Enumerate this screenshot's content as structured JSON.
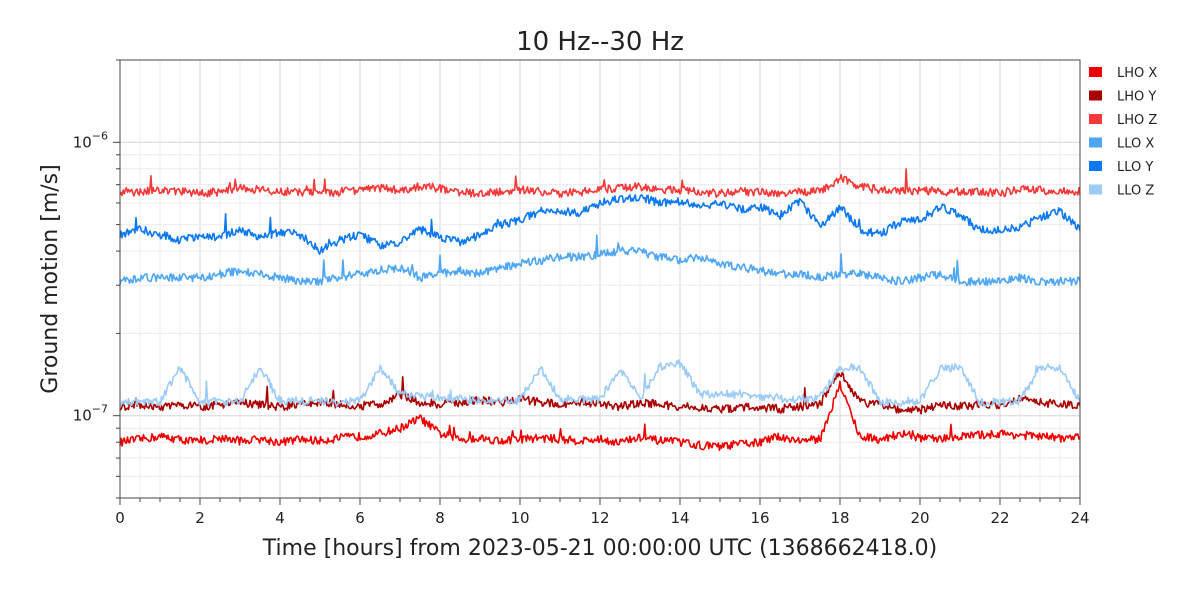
{
  "chart_data": {
    "type": "line",
    "title": "10 Hz--30 Hz",
    "xlabel": "Time [hours] from 2023-05-21 00:00:00 UTC (1368662418.0)",
    "ylabel": "Ground motion [m/s]",
    "xlim": [
      0,
      24
    ],
    "ylim": [
      5e-08,
      2e-06
    ],
    "yscale": "log",
    "x_ticks": [
      0,
      2,
      4,
      6,
      8,
      10,
      12,
      14,
      16,
      18,
      20,
      22,
      24
    ],
    "x_tick_labels": [
      "0",
      "2",
      "4",
      "6",
      "8",
      "10",
      "12",
      "14",
      "16",
      "18",
      "20",
      "22",
      "24"
    ],
    "y_tick_labels": [
      "10^-7",
      "10^-6"
    ],
    "y_ticks": [
      1e-07,
      1e-06
    ],
    "grid": true,
    "legend_position": "outside-right",
    "x": [
      0,
      0.5,
      1,
      1.5,
      2,
      2.5,
      3,
      3.5,
      4,
      4.5,
      5,
      5.5,
      6,
      6.5,
      7,
      7.5,
      8,
      8.5,
      9,
      9.5,
      10,
      10.5,
      11,
      11.5,
      12,
      12.5,
      13,
      13.5,
      14,
      14.5,
      15,
      15.5,
      16,
      16.5,
      17,
      17.5,
      18,
      18.5,
      19,
      19.5,
      20,
      20.5,
      21,
      21.5,
      22,
      22.5,
      23,
      23.5,
      24
    ],
    "series": [
      {
        "name": "LHO X",
        "color": "#ee0000",
        "values": [
          8e-08,
          8.2e-08,
          8.4e-08,
          8.2e-08,
          8e-08,
          8.3e-08,
          8.1e-08,
          8.2e-08,
          8e-08,
          8.2e-08,
          8.1e-08,
          8.3e-08,
          8.4e-08,
          8.6e-08,
          9e-08,
          9.8e-08,
          8.6e-08,
          8.2e-08,
          8.3e-08,
          8.1e-08,
          8.2e-08,
          8.3e-08,
          8.2e-08,
          8.1e-08,
          8.2e-08,
          8e-08,
          8.3e-08,
          8.1e-08,
          8e-08,
          7.8e-08,
          7.7e-08,
          7.9e-08,
          8e-08,
          8.4e-08,
          8.1e-08,
          8.2e-08,
          1.3e-07,
          8.4e-08,
          8.2e-08,
          8.6e-08,
          8.3e-08,
          8.2e-08,
          8.4e-08,
          8.5e-08,
          8.6e-08,
          8.5e-08,
          8.4e-08,
          8.3e-08,
          8.3e-08
        ]
      },
      {
        "name": "LHO Y",
        "color": "#a80000",
        "values": [
          1.08e-07,
          1.1e-07,
          1.07e-07,
          1.1e-07,
          1.08e-07,
          1.1e-07,
          1.12e-07,
          1.1e-07,
          1.08e-07,
          1.1e-07,
          1.11e-07,
          1.1e-07,
          1.09e-07,
          1.1e-07,
          1.2e-07,
          1.12e-07,
          1.1e-07,
          1.12e-07,
          1.14e-07,
          1.12e-07,
          1.15e-07,
          1.12e-07,
          1.1e-07,
          1.12e-07,
          1.1e-07,
          1.08e-07,
          1.12e-07,
          1.1e-07,
          1.08e-07,
          1.07e-07,
          1.05e-07,
          1.08e-07,
          1.07e-07,
          1.06e-07,
          1.08e-07,
          1.1e-07,
          1.45e-07,
          1.12e-07,
          1.1e-07,
          1.05e-07,
          1.05e-07,
          1.1e-07,
          1.08e-07,
          1.1e-07,
          1.1e-07,
          1.15e-07,
          1.12e-07,
          1.1e-07,
          1.1e-07
        ]
      },
      {
        "name": "LHO Z",
        "color": "#f53838",
        "values": [
          6.6e-07,
          6.6e-07,
          6.7e-07,
          6.6e-07,
          6.5e-07,
          6.6e-07,
          6.8e-07,
          6.7e-07,
          6.6e-07,
          6.6e-07,
          6.5e-07,
          6.6e-07,
          6.7e-07,
          6.8e-07,
          6.7e-07,
          6.9e-07,
          6.8e-07,
          6.6e-07,
          6.5e-07,
          6.6e-07,
          6.7e-07,
          6.6e-07,
          6.5e-07,
          6.6e-07,
          6.7e-07,
          6.8e-07,
          6.9e-07,
          6.7e-07,
          6.7e-07,
          6.6e-07,
          6.5e-07,
          6.6e-07,
          6.6e-07,
          6.5e-07,
          6.6e-07,
          6.6e-07,
          7.4e-07,
          6.9e-07,
          6.7e-07,
          6.6e-07,
          6.7e-07,
          6.6e-07,
          6.6e-07,
          6.6e-07,
          6.5e-07,
          6.8e-07,
          6.7e-07,
          6.6e-07,
          6.6e-07
        ]
      },
      {
        "name": "LLO X",
        "color": "#4ea6f5",
        "values": [
          3.1e-07,
          3.2e-07,
          3.2e-07,
          3.2e-07,
          3.2e-07,
          3.3e-07,
          3.4e-07,
          3.3e-07,
          3.2e-07,
          3.1e-07,
          3.1e-07,
          3.2e-07,
          3.3e-07,
          3.4e-07,
          3.5e-07,
          3.2e-07,
          3.3e-07,
          3.4e-07,
          3.3e-07,
          3.5e-07,
          3.6e-07,
          3.7e-07,
          3.8e-07,
          3.8e-07,
          3.9e-07,
          4e-07,
          4e-07,
          3.8e-07,
          3.7e-07,
          3.8e-07,
          3.6e-07,
          3.5e-07,
          3.4e-07,
          3.3e-07,
          3.3e-07,
          3.2e-07,
          3.3e-07,
          3.3e-07,
          3.2e-07,
          3.1e-07,
          3.2e-07,
          3.3e-07,
          3.1e-07,
          3.1e-07,
          3.1e-07,
          3.2e-07,
          3.1e-07,
          3.1e-07,
          3.1e-07
        ]
      },
      {
        "name": "LLO Y",
        "color": "#0a78f0",
        "values": [
          4.6e-07,
          4.8e-07,
          4.6e-07,
          4.4e-07,
          4.5e-07,
          4.5e-07,
          4.8e-07,
          4.5e-07,
          4.7e-07,
          4.6e-07,
          4e-07,
          4.4e-07,
          4.6e-07,
          4.2e-07,
          4.3e-07,
          4.8e-07,
          4.5e-07,
          4.3e-07,
          4.6e-07,
          5e-07,
          5.2e-07,
          5.6e-07,
          5.6e-07,
          5.5e-07,
          6e-07,
          6.2e-07,
          6.3e-07,
          6e-07,
          6.1e-07,
          5.8e-07,
          6e-07,
          5.7e-07,
          5.8e-07,
          5.4e-07,
          6.1e-07,
          4.9e-07,
          5.8e-07,
          4.8e-07,
          4.6e-07,
          5.1e-07,
          5.2e-07,
          5.8e-07,
          5.4e-07,
          4.8e-07,
          4.8e-07,
          4.9e-07,
          5.3e-07,
          5.6e-07,
          4.8e-07
        ]
      },
      {
        "name": "LLO Z",
        "color": "#9ccbf7",
        "values": [
          1.12e-07,
          1.13e-07,
          1.12e-07,
          1.5e-07,
          1.12e-07,
          1.13e-07,
          1.12e-07,
          1.5e-07,
          1.13e-07,
          1.13e-07,
          1.13e-07,
          1.12e-07,
          1.13e-07,
          1.5e-07,
          1.2e-07,
          1.18e-07,
          1.16e-07,
          1.15e-07,
          1.14e-07,
          1.14e-07,
          1.14e-07,
          1.5e-07,
          1.15e-07,
          1.15e-07,
          1.14e-07,
          1.5e-07,
          1.15e-07,
          1.52e-07,
          1.55e-07,
          1.2e-07,
          1.2e-07,
          1.2e-07,
          1.18e-07,
          1.16e-07,
          1.15e-07,
          1.16e-07,
          1.5e-07,
          1.5e-07,
          1.12e-07,
          1.12e-07,
          1.14e-07,
          1.48e-07,
          1.5e-07,
          1.12e-07,
          1.12e-07,
          1.13e-07,
          1.5e-07,
          1.5e-07,
          1.12e-07
        ]
      }
    ]
  }
}
